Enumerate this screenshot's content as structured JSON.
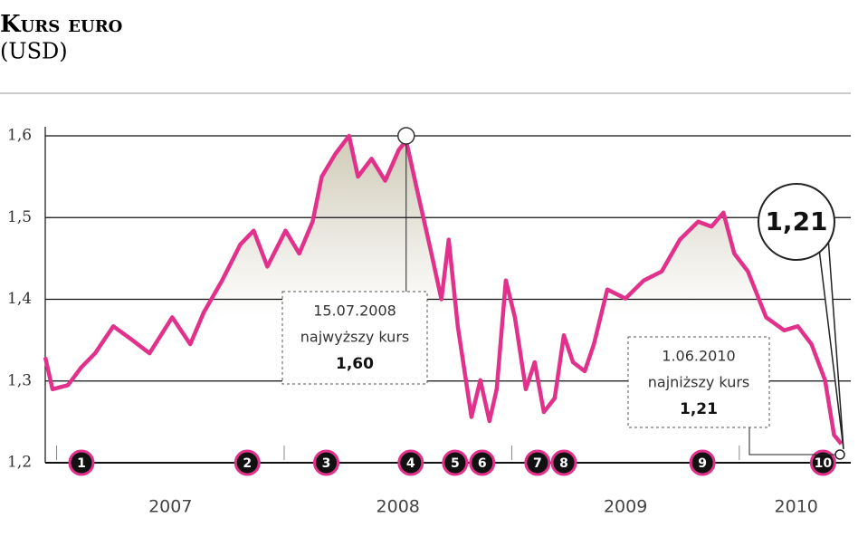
{
  "chart_data": {
    "type": "line",
    "title": "Kurs euro",
    "subtitle": "(USD)",
    "x": [
      2006.95,
      2006.982,
      2007.05,
      2007.109,
      2007.169,
      2007.249,
      2007.328,
      2007.408,
      2007.508,
      2007.587,
      2007.647,
      2007.727,
      2007.807,
      2007.866,
      2007.926,
      2008.006,
      2008.066,
      2008.125,
      2008.165,
      2008.225,
      2008.285,
      2008.324,
      2008.384,
      2008.444,
      2008.504,
      2008.536,
      2008.584,
      2008.643,
      2008.691,
      2008.723,
      2008.763,
      2008.823,
      2008.862,
      2008.902,
      2008.934,
      2008.974,
      2009.014,
      2009.062,
      2009.101,
      2009.141,
      2009.189,
      2009.229,
      2009.269,
      2009.321,
      2009.361,
      2009.42,
      2009.5,
      2009.58,
      2009.659,
      2009.739,
      2009.819,
      2009.878,
      2009.93,
      2009.978,
      2010.038,
      2010.118,
      2010.197,
      2010.257,
      2010.317,
      2010.377,
      2010.416,
      2010.448
    ],
    "series": [
      {
        "color": "#e2318b",
        "values": [
          1.329,
          1.29,
          1.295,
          1.317,
          1.334,
          1.367,
          1.351,
          1.334,
          1.378,
          1.345,
          1.384,
          1.423,
          1.467,
          1.484,
          1.44,
          1.484,
          1.456,
          1.495,
          1.55,
          1.578,
          1.6,
          1.55,
          1.572,
          1.545,
          1.583,
          1.594,
          1.534,
          1.461,
          1.4,
          1.473,
          1.367,
          1.256,
          1.301,
          1.251,
          1.29,
          1.423,
          1.378,
          1.29,
          1.323,
          1.262,
          1.279,
          1.356,
          1.323,
          1.312,
          1.345,
          1.412,
          1.401,
          1.423,
          1.434,
          1.473,
          1.495,
          1.489,
          1.506,
          1.456,
          1.434,
          1.378,
          1.362,
          1.367,
          1.345,
          1.301,
          1.234,
          1.223
        ]
      }
    ],
    "xlim": [
      2006.95,
      2010.45
    ],
    "xticks": [
      {
        "value": 2007.5,
        "label": "2007"
      },
      {
        "value": 2008.5,
        "label": "2008"
      },
      {
        "value": 2009.5,
        "label": "2009"
      },
      {
        "value": 2010.25,
        "label": "2010"
      }
    ],
    "ylim": [
      1.2,
      1.6
    ],
    "yticks": [
      {
        "value": 1.2,
        "label": "1,2"
      },
      {
        "value": 1.3,
        "label": "1,3"
      },
      {
        "value": 1.4,
        "label": "1,4"
      },
      {
        "value": 1.5,
        "label": "1,5"
      },
      {
        "value": 1.6,
        "label": "1,6"
      }
    ],
    "grid": true,
    "events": [
      {
        "label": "1",
        "x": 2007.109
      },
      {
        "label": "2",
        "x": 2007.838
      },
      {
        "label": "3",
        "x": 2008.185
      },
      {
        "label": "4",
        "x": 2008.556
      },
      {
        "label": "5",
        "x": 2008.751
      },
      {
        "label": "6",
        "x": 2008.87
      },
      {
        "label": "7",
        "x": 2009.113
      },
      {
        "label": "8",
        "x": 2009.229
      },
      {
        "label": "9",
        "x": 2009.838
      },
      {
        "label": "10",
        "x": 2010.368
      }
    ],
    "annotations": [
      {
        "x": 2008.536,
        "y": 1.6,
        "lines": [
          "15.07.2008",
          "najwyższy kurs",
          "1,60"
        ]
      },
      {
        "x": 2010.45,
        "y": 1.21,
        "lines": [
          "1.06.2010",
          "najniższy kurs",
          "1,21"
        ],
        "bubble": "1,21"
      }
    ]
  }
}
